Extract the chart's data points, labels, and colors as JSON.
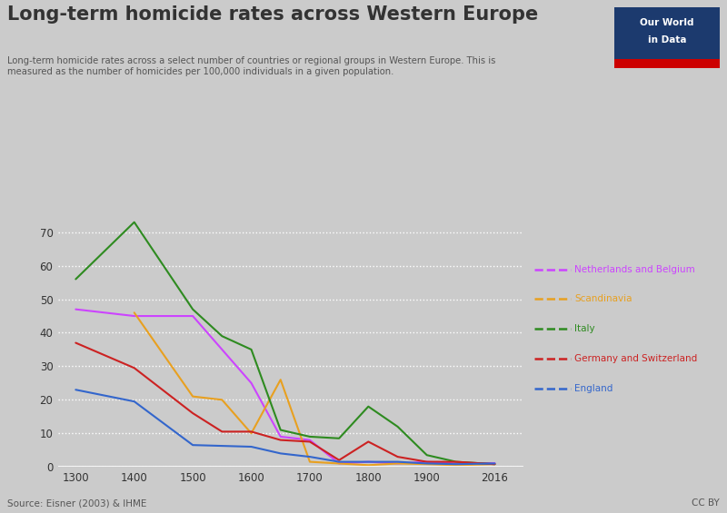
{
  "title": "Long-term homicide rates across Western Europe",
  "subtitle": "Long-term homicide rates across a select number of countries or regional groups in Western Europe. This is\nmeasured as the number of homicides per 100,000 individuals in a given population.",
  "source": "Source: Eisner (2003) & IHME",
  "background_color": "#CBCBCB",
  "plot_bg_color": "#CBCBCB",
  "text_color": "#333333",
  "subtitle_color": "#555555",
  "series": [
    {
      "label": "Netherlands and Belgium",
      "color": "#CC44FF",
      "data": [
        [
          1300,
          47
        ],
        [
          1400,
          45
        ],
        [
          1500,
          45
        ],
        [
          1600,
          25
        ],
        [
          1650,
          9
        ],
        [
          1700,
          8
        ],
        [
          1750,
          1
        ],
        [
          1800,
          1.5
        ],
        [
          1850,
          1
        ],
        [
          1900,
          1.5
        ],
        [
          1950,
          1
        ],
        [
          2016,
          1.1
        ]
      ]
    },
    {
      "label": "Scandinavia",
      "color": "#E8A020",
      "data": [
        [
          1400,
          46
        ],
        [
          1500,
          21
        ],
        [
          1550,
          20
        ],
        [
          1600,
          10
        ],
        [
          1650,
          26
        ],
        [
          1700,
          1.5
        ],
        [
          1750,
          1
        ],
        [
          1800,
          0.5
        ],
        [
          1850,
          1
        ],
        [
          1900,
          0.8
        ],
        [
          1950,
          0.5
        ],
        [
          2016,
          0.8
        ]
      ]
    },
    {
      "label": "Italy",
      "color": "#2E8B20",
      "data": [
        [
          1300,
          56
        ],
        [
          1400,
          73
        ],
        [
          1500,
          47
        ],
        [
          1550,
          39
        ],
        [
          1600,
          35
        ],
        [
          1650,
          11
        ],
        [
          1700,
          9
        ],
        [
          1750,
          8.5
        ],
        [
          1800,
          18
        ],
        [
          1850,
          12
        ],
        [
          1900,
          3.5
        ],
        [
          1950,
          1.5
        ],
        [
          2016,
          0.8
        ]
      ]
    },
    {
      "label": "Germany and Switzerland",
      "color": "#CC2222",
      "data": [
        [
          1300,
          37
        ],
        [
          1400,
          29.5
        ],
        [
          1500,
          16
        ],
        [
          1550,
          10.5
        ],
        [
          1600,
          10.5
        ],
        [
          1650,
          8
        ],
        [
          1700,
          7.5
        ],
        [
          1750,
          2
        ],
        [
          1800,
          7.5
        ],
        [
          1850,
          3
        ],
        [
          1900,
          1.5
        ],
        [
          1950,
          1.5
        ],
        [
          2016,
          0.8
        ]
      ]
    },
    {
      "label": "England",
      "color": "#3366CC",
      "data": [
        [
          1300,
          23
        ],
        [
          1400,
          19.5
        ],
        [
          1500,
          6.5
        ],
        [
          1600,
          6
        ],
        [
          1650,
          4
        ],
        [
          1700,
          3
        ],
        [
          1750,
          1.5
        ],
        [
          1800,
          1.5
        ],
        [
          1850,
          1.5
        ],
        [
          1900,
          1
        ],
        [
          1950,
          0.8
        ],
        [
          2016,
          1
        ]
      ]
    }
  ],
  "xlim": [
    1270,
    2065
  ],
  "ylim": [
    0,
    75
  ],
  "yticks": [
    0,
    10,
    20,
    30,
    40,
    50,
    60,
    70
  ],
  "xticks": [
    1300,
    1400,
    1500,
    1600,
    1700,
    1800,
    1900,
    2016
  ],
  "grid_color": "#FFFFFF",
  "owid_box_color": "#1C3A6E",
  "owid_red": "#CC0000",
  "legend_order": [
    "Netherlands and Belgium",
    "Scandinavia",
    "Italy",
    "Germany and Switzerland",
    "England"
  ]
}
